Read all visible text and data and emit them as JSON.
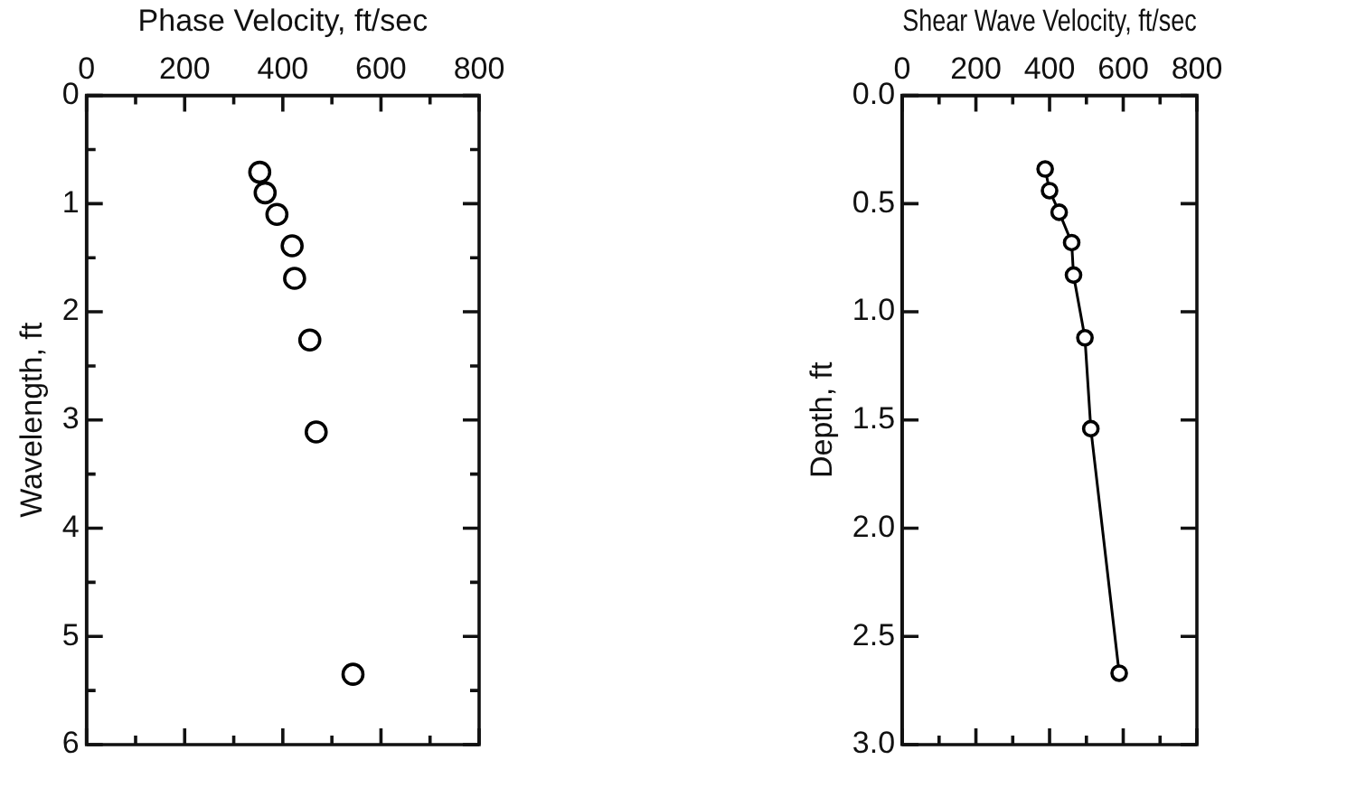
{
  "chart_data": [
    {
      "type": "scatter",
      "xlabel": "Phase Velocity, ft/sec",
      "ylabel": "Wavelength, ft",
      "marker": "circle",
      "grid": false,
      "legend": false,
      "x": [
        353,
        364,
        388,
        419,
        424,
        455,
        468,
        543
      ],
      "series": [
        {
          "color": "#000000",
          "values": [
            0.71,
            0.9,
            1.1,
            1.39,
            1.69,
            2.26,
            3.11,
            5.35
          ]
        }
      ],
      "xlim": [
        0,
        800
      ],
      "xticks": [
        0,
        {
          "value": 100,
          "label": null
        },
        200,
        {
          "value": 300,
          "label": null
        },
        400,
        {
          "value": 500,
          "label": null
        },
        600,
        {
          "value": 700,
          "label": null
        },
        800
      ],
      "ylim": [
        6,
        0
      ],
      "yticks": [
        0,
        {
          "value": 0.5,
          "label": null
        },
        1,
        {
          "value": 1.5,
          "label": null
        },
        2,
        {
          "value": 2.5,
          "label": null
        },
        3,
        {
          "value": 3.5,
          "label": null
        },
        4,
        {
          "value": 4.5,
          "label": null
        },
        5,
        {
          "value": 5.5,
          "label": null
        },
        6
      ]
    },
    {
      "type": "line",
      "xlabel": "Shear Wave Velocity, ft/sec",
      "ylabel": "Depth, ft",
      "marker": "circle",
      "line_style": "solid",
      "grid": false,
      "legend": false,
      "x": [
        388,
        400,
        426,
        460,
        465,
        496,
        512,
        589
      ],
      "series": [
        {
          "color": "#000000",
          "values": [
            0.34,
            0.44,
            0.54,
            0.68,
            0.83,
            1.12,
            1.54,
            2.67
          ]
        }
      ],
      "xlim": [
        0,
        800
      ],
      "xticks": [
        0,
        {
          "value": 100,
          "label": null
        },
        200,
        {
          "value": 300,
          "label": null
        },
        400,
        {
          "value": 500,
          "label": null
        },
        600,
        {
          "value": 700,
          "label": null
        },
        800
      ],
      "ylim": [
        3,
        0
      ],
      "yticks": [
        {
          "value": 0,
          "label": "0.0"
        },
        0.5,
        {
          "value": 1,
          "label": "1.0"
        },
        1.5,
        {
          "value": 2,
          "label": "2.0"
        },
        2.5,
        {
          "value": 3,
          "label": "3.0"
        }
      ]
    }
  ]
}
